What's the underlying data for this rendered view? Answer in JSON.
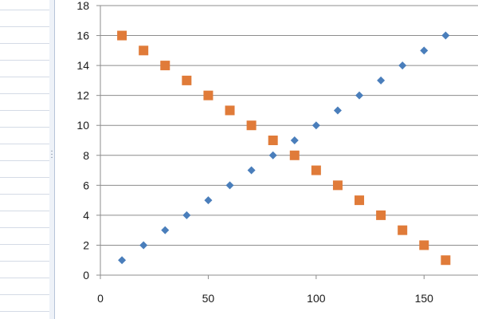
{
  "chart_data": {
    "type": "scatter",
    "title": "",
    "xlabel": "",
    "ylabel": "",
    "xlim": [
      0,
      175
    ],
    "ylim": [
      0,
      18
    ],
    "x_ticks": [
      0,
      50,
      100,
      150
    ],
    "y_ticks": [
      0,
      2,
      4,
      6,
      8,
      10,
      12,
      14,
      16,
      18
    ],
    "grid": "horizontal",
    "legend": "none",
    "series": [
      {
        "marker": "diamond",
        "color": "#4a7ebb",
        "points": [
          [
            10,
            1
          ],
          [
            20,
            2
          ],
          [
            30,
            3
          ],
          [
            40,
            4
          ],
          [
            50,
            5
          ],
          [
            60,
            6
          ],
          [
            70,
            7
          ],
          [
            80,
            8
          ],
          [
            90,
            9
          ],
          [
            100,
            10
          ],
          [
            110,
            11
          ],
          [
            120,
            12
          ],
          [
            130,
            13
          ],
          [
            140,
            14
          ],
          [
            150,
            15
          ],
          [
            160,
            16
          ]
        ]
      },
      {
        "marker": "square",
        "color": "#e07b39",
        "points": [
          [
            10,
            16
          ],
          [
            20,
            15
          ],
          [
            30,
            14
          ],
          [
            40,
            13
          ],
          [
            50,
            12
          ],
          [
            60,
            11
          ],
          [
            70,
            10
          ],
          [
            80,
            9
          ],
          [
            90,
            8
          ],
          [
            100,
            7
          ],
          [
            110,
            6
          ],
          [
            120,
            5
          ],
          [
            130,
            4
          ],
          [
            140,
            3
          ],
          [
            150,
            2
          ],
          [
            160,
            1
          ]
        ]
      }
    ]
  }
}
